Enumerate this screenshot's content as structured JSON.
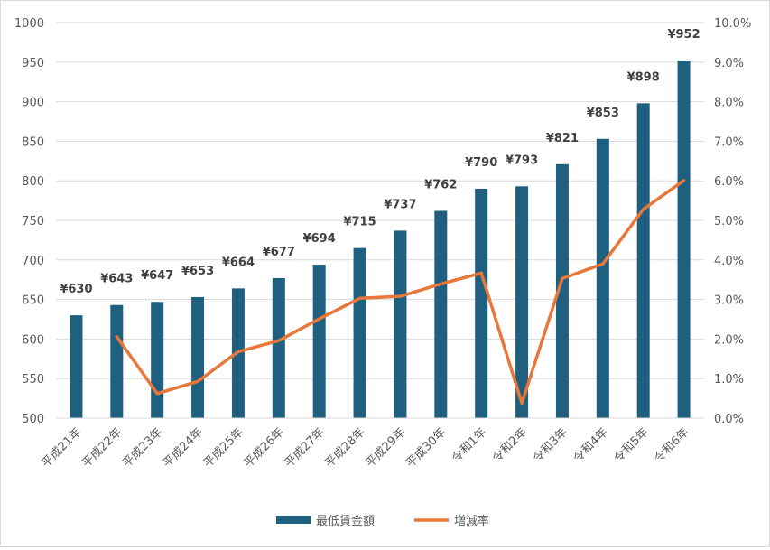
{
  "chart_data": {
    "type": "bar",
    "categories": [
      "平成21年",
      "平成22年",
      "平成23年",
      "平成24年",
      "平成25年",
      "平成26年",
      "平成27年",
      "平成28年",
      "平成29年",
      "平成30年",
      "令和1年",
      "令和2年",
      "令和3年",
      "令和4年",
      "令和5年",
      "令和6年"
    ],
    "series": [
      {
        "name": "最低賃金額",
        "type": "bar",
        "axis": "left",
        "color": "#1f5f80",
        "values": [
          630,
          643,
          647,
          653,
          664,
          677,
          694,
          715,
          737,
          762,
          790,
          793,
          821,
          853,
          898,
          952
        ],
        "labels": [
          "¥630",
          "¥643",
          "¥647",
          "¥653",
          "¥664",
          "¥677",
          "¥694",
          "¥715",
          "¥737",
          "¥762",
          "¥790",
          "¥793",
          "¥821",
          "¥853",
          "¥898",
          "¥952"
        ]
      },
      {
        "name": "増減率",
        "type": "line",
        "axis": "right",
        "color": "#e8773a",
        "values": [
          null,
          2.06,
          0.62,
          0.93,
          1.68,
          1.96,
          2.51,
          3.03,
          3.08,
          3.39,
          3.67,
          0.38,
          3.53,
          3.9,
          5.28,
          6.01
        ]
      }
    ],
    "y_left": {
      "min": 500,
      "max": 1000,
      "ticks": [
        "500",
        "550",
        "600",
        "650",
        "700",
        "750",
        "800",
        "850",
        "900",
        "950",
        "1000"
      ]
    },
    "y_right": {
      "min": 0,
      "max": 10,
      "ticks": [
        "0.0%",
        "1.0%",
        "2.0%",
        "3.0%",
        "4.0%",
        "5.0%",
        "6.0%",
        "7.0%",
        "8.0%",
        "9.0%",
        "10.0%"
      ]
    },
    "grid": true,
    "legend": "bottom"
  }
}
